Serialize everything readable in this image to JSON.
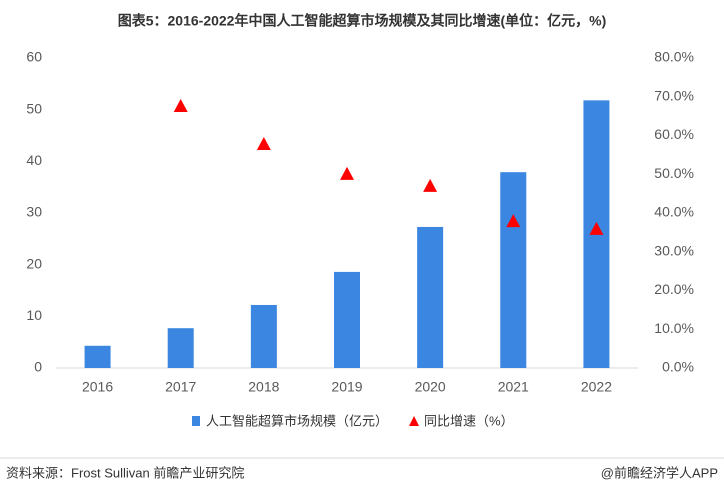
{
  "chart_data": {
    "type": "bar",
    "title": "图表5：2016-2022年中国人工智能超算市场规模及其同比增速(单位：亿元，%)",
    "categories": [
      "2016",
      "2017",
      "2018",
      "2019",
      "2020",
      "2021",
      "2022"
    ],
    "series": [
      {
        "name": "人工智能超算市场规模（亿元）",
        "type": "bar",
        "color": "#3a86e0",
        "values": [
          4.3,
          7.7,
          12.2,
          18.6,
          27.3,
          37.9,
          51.8
        ]
      },
      {
        "name": "同比增速（%）",
        "type": "scatter",
        "marker": "triangle",
        "axis": "y2",
        "color": "#ff0000",
        "values": [
          null,
          67.6,
          57.8,
          50.1,
          47.0,
          37.9,
          35.9
        ]
      }
    ],
    "ylim": [
      0,
      60
    ],
    "yticks": [
      0,
      10,
      20,
      30,
      40,
      50,
      60
    ],
    "y2lim": [
      0,
      80
    ],
    "y2ticks": [
      {
        "value": 0,
        "label": "0.0%"
      },
      {
        "value": 10,
        "label": "10.0%"
      },
      {
        "value": 20,
        "label": "20.0%"
      },
      {
        "value": 30,
        "label": "30.0%"
      },
      {
        "value": 40,
        "label": "40.0%"
      },
      {
        "value": 50,
        "label": "50.0%"
      },
      {
        "value": 60,
        "label": "60.0%"
      },
      {
        "value": 70,
        "label": "70.0%"
      },
      {
        "value": 80,
        "label": "80.0%"
      }
    ],
    "grid": false,
    "legend": "bottom",
    "source": "资料来源：Frost Sullivan 前瞻产业研究院",
    "brand": "@前瞻经济学人APP"
  }
}
